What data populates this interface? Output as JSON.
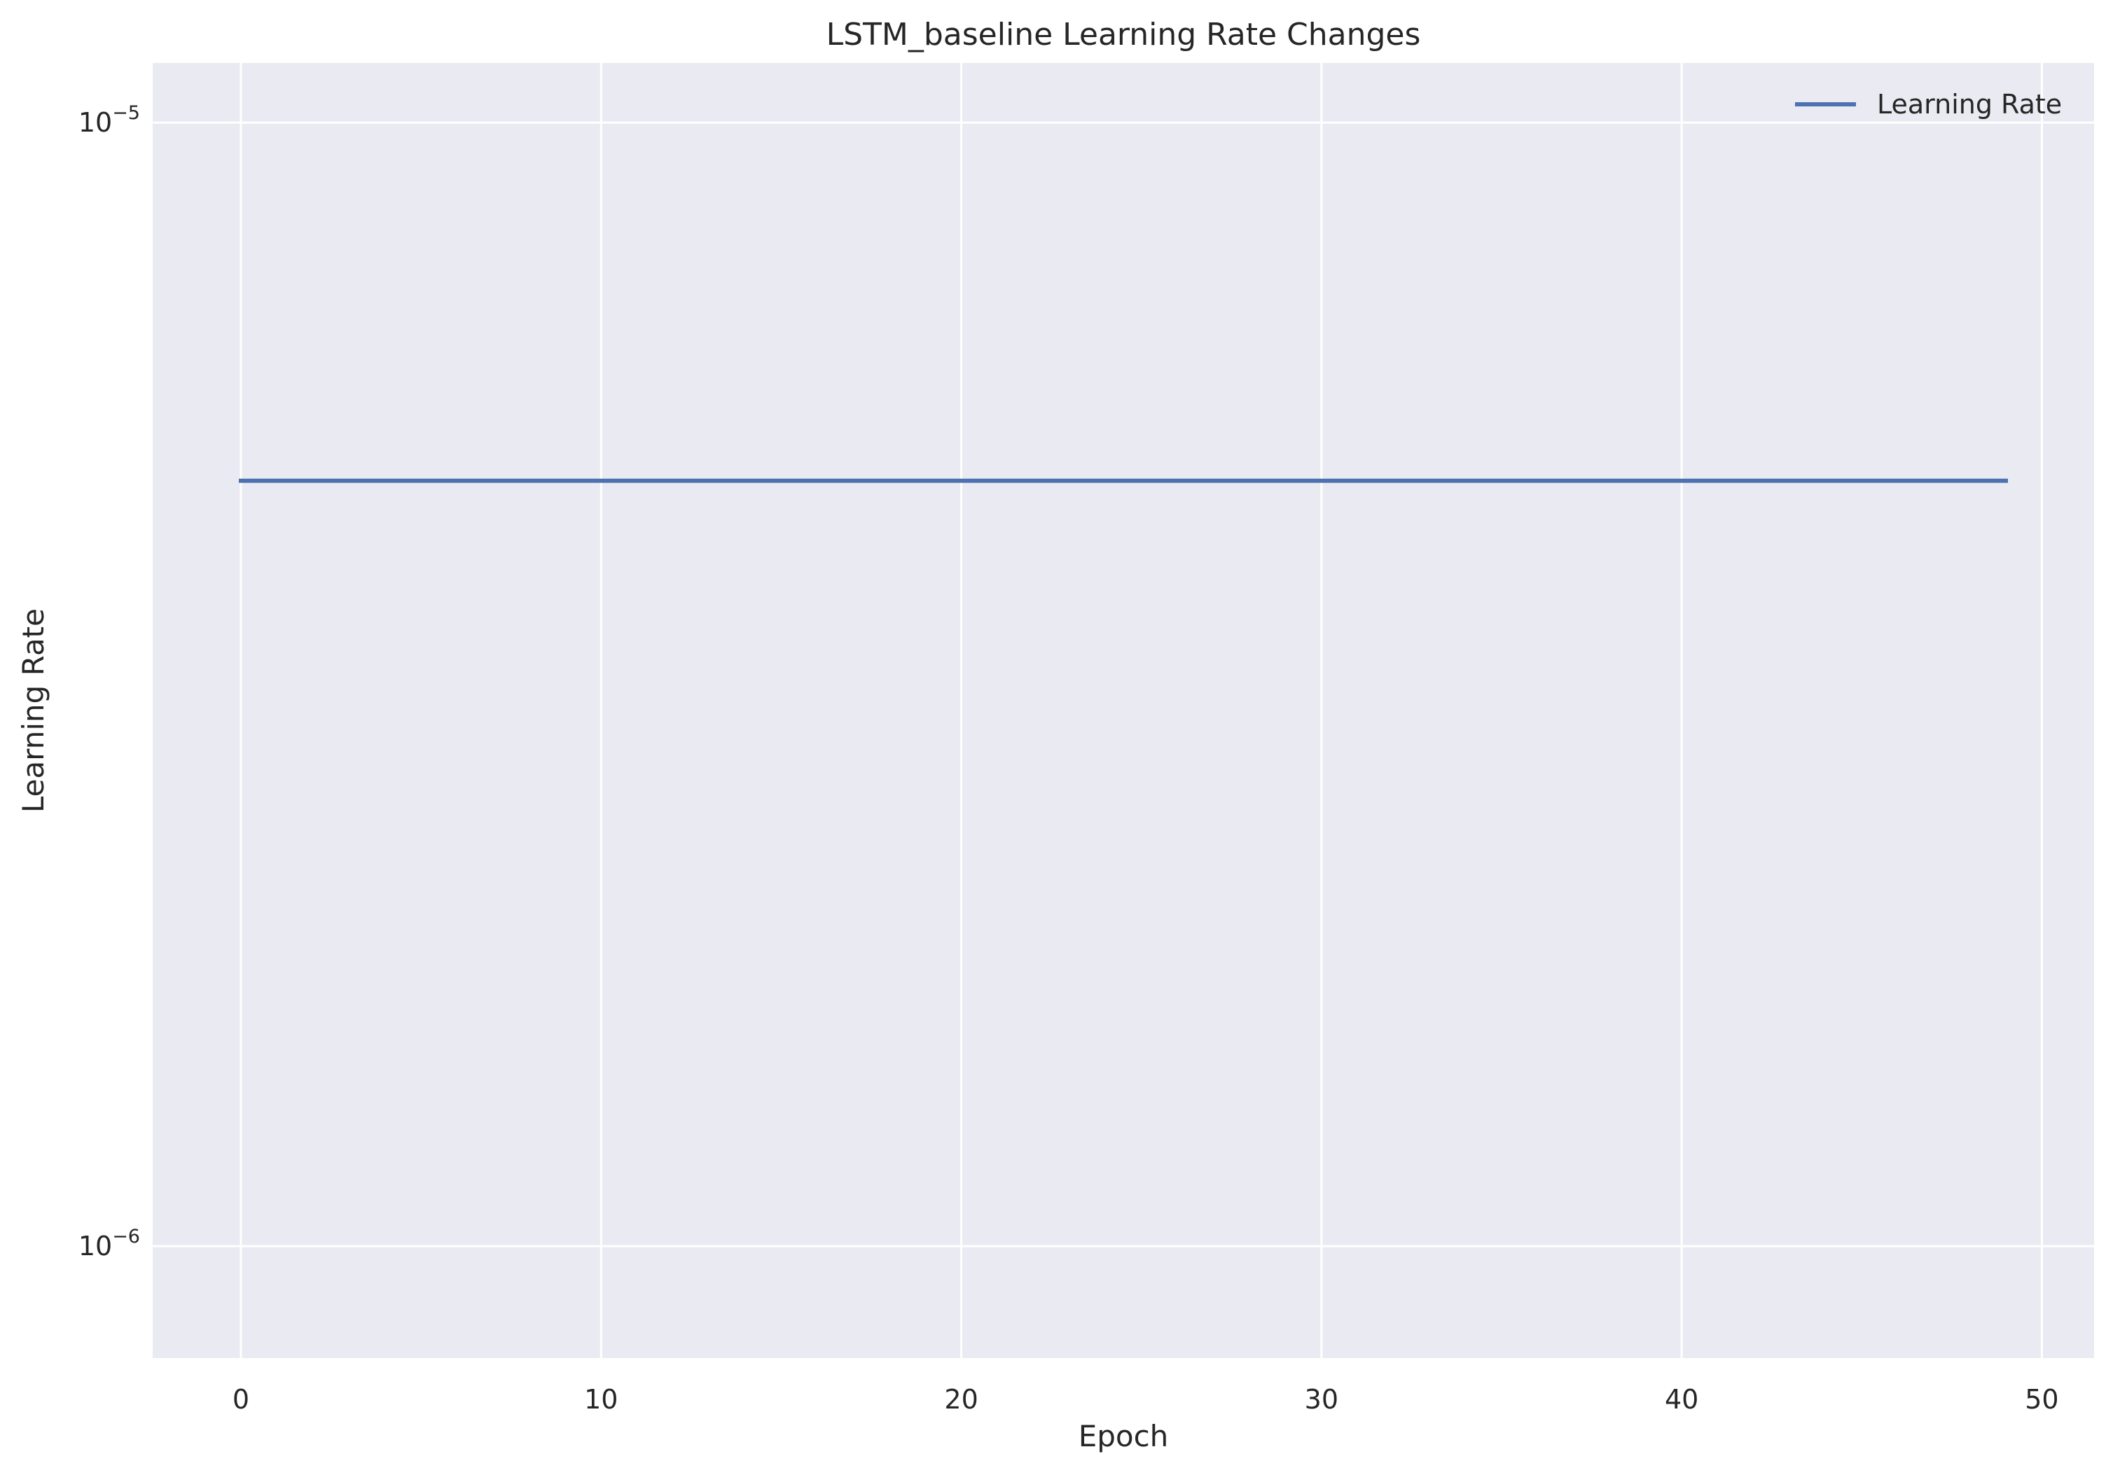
{
  "chart_data": {
    "type": "line",
    "title": "LSTM_baseline Learning Rate Changes",
    "xlabel": "Epoch",
    "ylabel": "Learning Rate",
    "yscale": "log",
    "xlim": [
      -2.45,
      51.45
    ],
    "ylim": [
      7.95e-07,
      1.13e-05
    ],
    "x_ticks": [
      {
        "value": 0,
        "label": "0"
      },
      {
        "value": 10,
        "label": "10"
      },
      {
        "value": 20,
        "label": "20"
      },
      {
        "value": 30,
        "label": "30"
      },
      {
        "value": 40,
        "label": "40"
      },
      {
        "value": 50,
        "label": "50"
      }
    ],
    "y_ticks": [
      {
        "value": 1e-06,
        "base": "10",
        "exponent": "−6"
      },
      {
        "value": 1e-05,
        "base": "10",
        "exponent": "−5"
      }
    ],
    "grid": true,
    "legend_position": "top-right",
    "series": [
      {
        "name": "Learning Rate",
        "color": "#4c72b0",
        "x": [
          0,
          1,
          2,
          3,
          4,
          5,
          6,
          7,
          8,
          9,
          10,
          11,
          12,
          13,
          14,
          15,
          16,
          17,
          18,
          19,
          20,
          21,
          22,
          23,
          24,
          25,
          26,
          27,
          28,
          29,
          30,
          31,
          32,
          33,
          34,
          35,
          36,
          37,
          38,
          39,
          40,
          41,
          42,
          43,
          44,
          45,
          46,
          47,
          48,
          49
        ],
        "y": [
          4.8e-06,
          4.8e-06,
          4.8e-06,
          4.8e-06,
          4.8e-06,
          4.8e-06,
          4.8e-06,
          4.8e-06,
          4.8e-06,
          4.8e-06,
          4.8e-06,
          4.8e-06,
          4.8e-06,
          4.8e-06,
          4.8e-06,
          4.8e-06,
          4.8e-06,
          4.8e-06,
          4.8e-06,
          4.8e-06,
          4.8e-06,
          4.8e-06,
          4.8e-06,
          4.8e-06,
          4.8e-06,
          4.8e-06,
          4.8e-06,
          4.8e-06,
          4.8e-06,
          4.8e-06,
          4.8e-06,
          4.8e-06,
          4.8e-06,
          4.8e-06,
          4.8e-06,
          4.8e-06,
          4.8e-06,
          4.8e-06,
          4.8e-06,
          4.8e-06,
          4.8e-06,
          4.8e-06,
          4.8e-06,
          4.8e-06,
          4.8e-06,
          4.8e-06,
          4.8e-06,
          4.8e-06,
          4.8e-06,
          4.8e-06
        ]
      }
    ],
    "colors": {
      "plot_background": "#eaeaf2",
      "grid": "#ffffff",
      "text": "#262626"
    }
  }
}
